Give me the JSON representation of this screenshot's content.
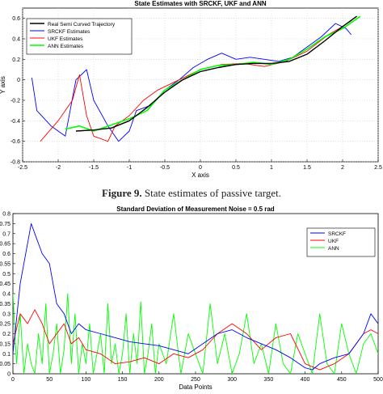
{
  "figure1": {
    "caption_label": "Figure 9.",
    "caption_text": "State estimates of passive target.",
    "chart_data": {
      "type": "line",
      "title": "State Estimates with SRCKF, UKF and ANN",
      "xlabel": "X axis",
      "ylabel": "Y axis",
      "xlim": [
        -2.5,
        2.5
      ],
      "ylim": [
        -0.8,
        0.7
      ],
      "xticks": [
        "-2.5",
        "-2",
        "-1.5",
        "-1",
        "-0.5",
        "0",
        "0.5",
        "1",
        "1.5",
        "2",
        "2.5"
      ],
      "yticks": [
        "-0.8",
        "-0.6",
        "-0.4",
        "-0.2",
        "0",
        "0.2",
        "0.4",
        "0.6"
      ],
      "grid": true,
      "legend_position": "top-left",
      "series": [
        {
          "name": "Real Semi Curved Trajectory",
          "color": "#000000",
          "points": [
            [
              -1.75,
              -0.5
            ],
            [
              -1.5,
              -0.49
            ],
            [
              -1.25,
              -0.47
            ],
            [
              -1.0,
              -0.4
            ],
            [
              -0.75,
              -0.27
            ],
            [
              -0.5,
              -0.12
            ],
            [
              -0.25,
              0.0
            ],
            [
              0.0,
              0.08
            ],
            [
              0.25,
              0.12
            ],
            [
              0.5,
              0.15
            ],
            [
              0.75,
              0.16
            ],
            [
              1.0,
              0.16
            ],
            [
              1.25,
              0.18
            ],
            [
              1.5,
              0.25
            ],
            [
              1.75,
              0.38
            ],
            [
              2.0,
              0.52
            ],
            [
              2.2,
              0.62
            ]
          ]
        },
        {
          "name": "SRCKF Estimates",
          "color": "#0000ff",
          "points": [
            [
              -2.37,
              0.02
            ],
            [
              -2.3,
              -0.3
            ],
            [
              -2.1,
              -0.45
            ],
            [
              -1.9,
              -0.55
            ],
            [
              -1.75,
              0.0
            ],
            [
              -1.6,
              0.1
            ],
            [
              -1.5,
              -0.2
            ],
            [
              -1.3,
              -0.45
            ],
            [
              -1.15,
              -0.6
            ],
            [
              -1.0,
              -0.5
            ],
            [
              -0.9,
              -0.3
            ],
            [
              -0.7,
              -0.25
            ],
            [
              -0.5,
              -0.1
            ],
            [
              -0.3,
              0.0
            ],
            [
              -0.1,
              0.12
            ],
            [
              0.1,
              0.2
            ],
            [
              0.3,
              0.26
            ],
            [
              0.5,
              0.2
            ],
            [
              0.7,
              0.22
            ],
            [
              0.9,
              0.2
            ],
            [
              1.1,
              0.18
            ],
            [
              1.3,
              0.22
            ],
            [
              1.5,
              0.32
            ],
            [
              1.7,
              0.42
            ],
            [
              1.9,
              0.55
            ],
            [
              2.05,
              0.5
            ],
            [
              2.12,
              0.44
            ]
          ]
        },
        {
          "name": "UKF Estimates",
          "color": "#ff0000",
          "points": [
            [
              -2.25,
              -0.6
            ],
            [
              -2.0,
              -0.4
            ],
            [
              -1.8,
              -0.2
            ],
            [
              -1.7,
              0.05
            ],
            [
              -1.6,
              -0.35
            ],
            [
              -1.5,
              -0.55
            ],
            [
              -1.3,
              -0.6
            ],
            [
              -1.2,
              -0.45
            ],
            [
              -1.0,
              -0.35
            ],
            [
              -0.8,
              -0.2
            ],
            [
              -0.6,
              -0.1
            ],
            [
              -0.3,
              0.0
            ],
            [
              0.0,
              0.1
            ],
            [
              0.3,
              0.15
            ],
            [
              0.6,
              0.16
            ],
            [
              0.9,
              0.13
            ],
            [
              1.2,
              0.18
            ],
            [
              1.5,
              0.28
            ],
            [
              1.8,
              0.44
            ],
            [
              2.0,
              0.52
            ],
            [
              2.13,
              0.58
            ]
          ]
        },
        {
          "name": "ANN Estimates",
          "color": "#00ff00",
          "points": [
            [
              -1.9,
              -0.48
            ],
            [
              -1.7,
              -0.45
            ],
            [
              -1.5,
              -0.5
            ],
            [
              -1.25,
              -0.44
            ],
            [
              -1.0,
              -0.38
            ],
            [
              -0.75,
              -0.3
            ],
            [
              -0.5,
              -0.1
            ],
            [
              -0.25,
              0.0
            ],
            [
              0.0,
              0.1
            ],
            [
              0.25,
              0.14
            ],
            [
              0.5,
              0.15
            ],
            [
              0.75,
              0.17
            ],
            [
              1.0,
              0.15
            ],
            [
              1.25,
              0.2
            ],
            [
              1.5,
              0.3
            ],
            [
              1.75,
              0.42
            ],
            [
              2.0,
              0.5
            ],
            [
              2.25,
              0.62
            ]
          ]
        }
      ]
    }
  },
  "figure2": {
    "chart_data": {
      "type": "line",
      "title": "Standard Deviation of Measurement Noise = 0.5 rad",
      "xlabel": "Data Points",
      "ylabel": "RMSE",
      "xlim": [
        0,
        500
      ],
      "ylim": [
        0,
        0.8
      ],
      "xticks": [
        "0",
        "50",
        "100",
        "150",
        "200",
        "250",
        "300",
        "350",
        "400",
        "450",
        "500"
      ],
      "yticks": [
        "0",
        "0.05",
        "0.1",
        "0.15",
        "0.2",
        "0.25",
        "0.3",
        "0.35",
        "0.4",
        "0.45",
        "0.5",
        "0.55",
        "0.6",
        "0.65",
        "0.7",
        "0.75",
        "0.8"
      ],
      "grid": false,
      "legend_position": "top-right",
      "series": [
        {
          "name": "SRCKF",
          "color": "#0000ff",
          "x": [
            0,
            10,
            20,
            25,
            30,
            40,
            50,
            60,
            70,
            80,
            90,
            100,
            120,
            140,
            160,
            180,
            200,
            220,
            240,
            260,
            280,
            300,
            320,
            340,
            360,
            380,
            400,
            410,
            420,
            440,
            460,
            480,
            490,
            500
          ],
          "y": [
            0.1,
            0.45,
            0.65,
            0.75,
            0.7,
            0.6,
            0.55,
            0.35,
            0.3,
            0.2,
            0.25,
            0.22,
            0.2,
            0.18,
            0.16,
            0.15,
            0.14,
            0.12,
            0.1,
            0.15,
            0.2,
            0.22,
            0.18,
            0.15,
            0.12,
            0.08,
            0.03,
            0.02,
            0.05,
            0.08,
            0.1,
            0.2,
            0.3,
            0.25
          ]
        },
        {
          "name": "UKF",
          "color": "#ff0000",
          "x": [
            0,
            10,
            20,
            30,
            40,
            50,
            60,
            70,
            80,
            90,
            100,
            120,
            140,
            160,
            180,
            200,
            220,
            240,
            260,
            280,
            300,
            320,
            340,
            360,
            380,
            400,
            420,
            440,
            460,
            480,
            490,
            500
          ],
          "y": [
            0.15,
            0.3,
            0.25,
            0.32,
            0.25,
            0.15,
            0.2,
            0.25,
            0.15,
            0.18,
            0.12,
            0.1,
            0.05,
            0.06,
            0.08,
            0.05,
            0.1,
            0.08,
            0.12,
            0.2,
            0.25,
            0.2,
            0.12,
            0.18,
            0.2,
            0.05,
            0.02,
            0.05,
            0.1,
            0.2,
            0.22,
            0.2
          ]
        },
        {
          "name": "ANN",
          "color": "#00ff00",
          "x": [
            0,
            5,
            10,
            15,
            20,
            25,
            30,
            35,
            40,
            45,
            50,
            55,
            60,
            65,
            70,
            75,
            80,
            85,
            90,
            95,
            100,
            105,
            110,
            115,
            120,
            125,
            130,
            135,
            140,
            145,
            150,
            155,
            160,
            165,
            170,
            175,
            180,
            185,
            190,
            195,
            200,
            210,
            220,
            230,
            240,
            250,
            260,
            270,
            280,
            290,
            300,
            310,
            320,
            330,
            340,
            350,
            360,
            370,
            380,
            390,
            400,
            410,
            420,
            430,
            440,
            450,
            460,
            470,
            480,
            490,
            500
          ],
          "y": [
            0.4,
            0.05,
            0.3,
            0.0,
            0.15,
            0.05,
            0.0,
            0.2,
            0.05,
            0.35,
            0.0,
            0.1,
            0.25,
            0.0,
            0.12,
            0.4,
            0.05,
            0.3,
            0.0,
            0.15,
            0.05,
            0.25,
            0.0,
            0.1,
            0.2,
            0.0,
            0.35,
            0.05,
            0.15,
            0.0,
            0.1,
            0.3,
            0.0,
            0.2,
            0.05,
            0.36,
            0.0,
            0.1,
            0.25,
            0.0,
            0.15,
            0.05,
            0.3,
            0.0,
            0.2,
            0.1,
            0.0,
            0.35,
            0.05,
            0.2,
            0.0,
            0.1,
            0.3,
            0.05,
            0.15,
            0.0,
            0.25,
            0.05,
            0.0,
            0.2,
            0.1,
            0.0,
            0.3,
            0.05,
            0.0,
            0.25,
            0.1,
            0.0,
            0.15,
            0.2,
            0.1
          ]
        }
      ]
    }
  }
}
